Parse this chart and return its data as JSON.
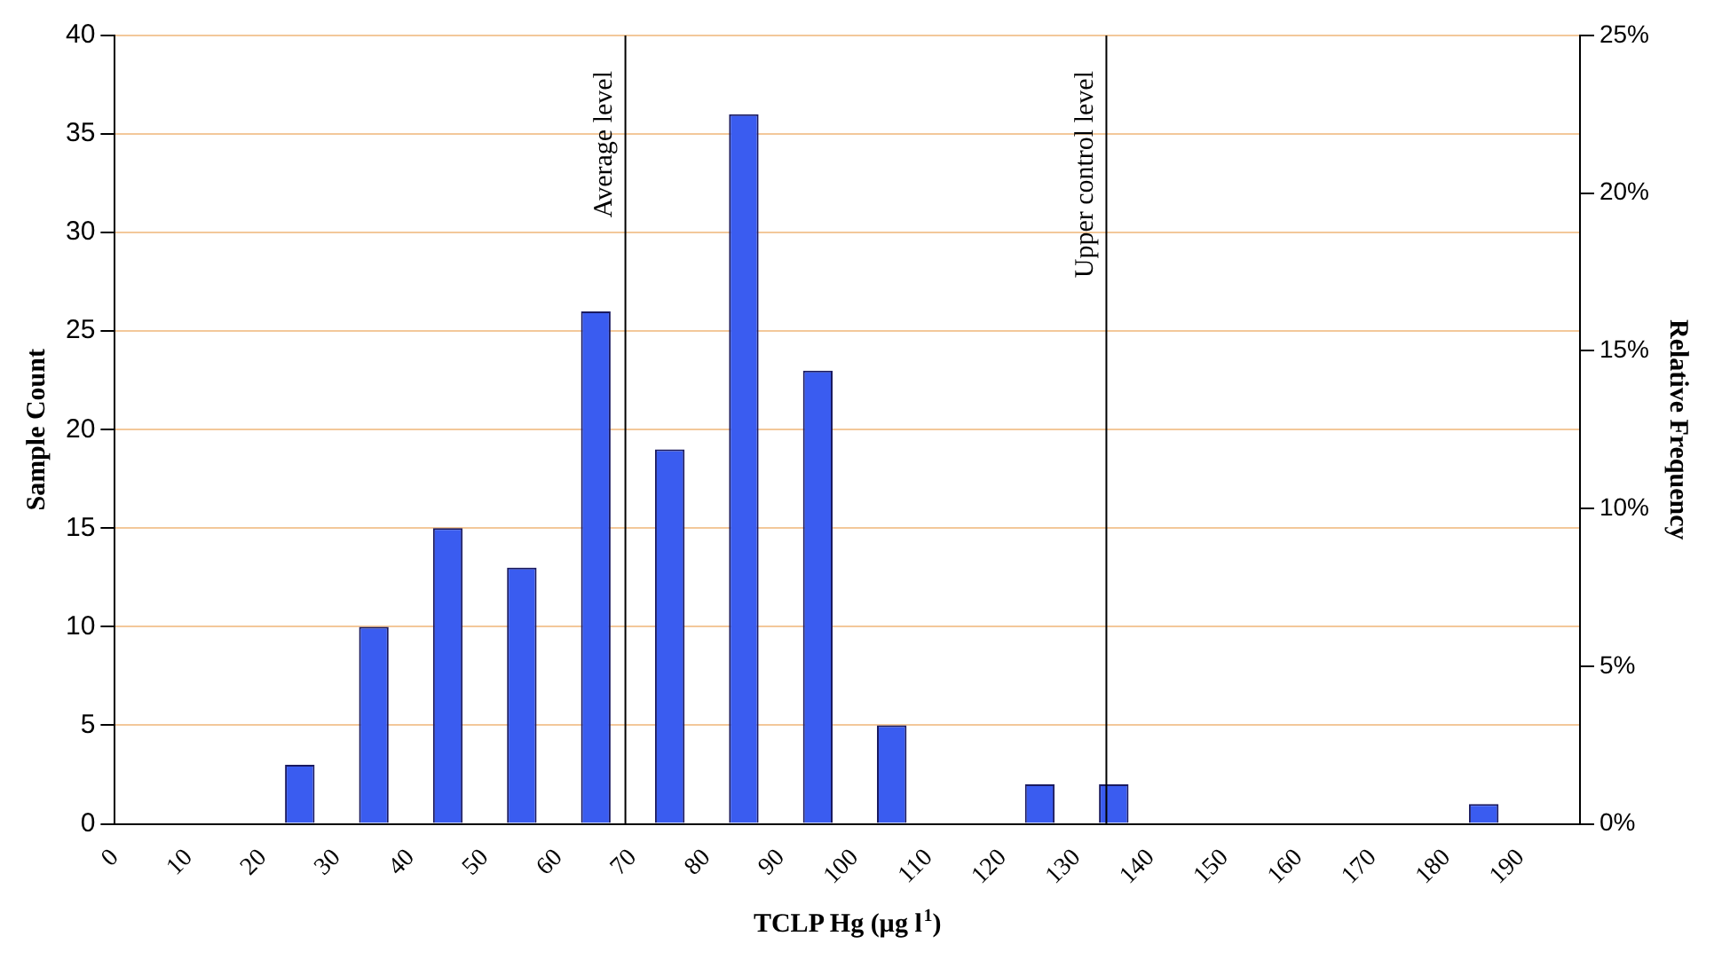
{
  "chart_data": {
    "type": "histogram",
    "xlabel": "TCLP Hg (µg l$^{1}$)",
    "ylabel": "Sample Count",
    "y2label": "Relative Frequency",
    "bins": [
      0,
      10,
      20,
      30,
      40,
      50,
      60,
      70,
      80,
      90,
      100,
      110,
      120,
      130,
      140,
      150,
      160,
      170,
      180,
      190,
      200
    ],
    "values": [
      0,
      0,
      3,
      10,
      15,
      13,
      26,
      19,
      36,
      23,
      5,
      0,
      2,
      2,
      0,
      0,
      0,
      0,
      1,
      0
    ],
    "color": "#3a5cf0",
    "xlim": [
      0,
      198
    ],
    "xticks": [
      0,
      10,
      20,
      30,
      40,
      50,
      60,
      70,
      80,
      90,
      100,
      110,
      120,
      130,
      140,
      150,
      160,
      170,
      180,
      190
    ],
    "ylim": [
      0,
      40
    ],
    "yticks": [
      0,
      5,
      10,
      15,
      20,
      25,
      30,
      35,
      40
    ],
    "y2lim": [
      0,
      25
    ],
    "y2ticks": [
      {
        "value": 0,
        "label": "0%"
      },
      {
        "value": 5,
        "label": "5%"
      },
      {
        "value": 10,
        "label": "10%"
      },
      {
        "value": 15,
        "label": "15%"
      },
      {
        "value": 20,
        "label": "20%"
      },
      {
        "value": 25,
        "label": "25%"
      }
    ],
    "grid": "y",
    "ref_lines": [
      {
        "axis": "x",
        "value": 69,
        "label": "Average level",
        "color": "#000000"
      },
      {
        "axis": "x",
        "value": 134,
        "label": "Upper control level",
        "color": "#000000"
      }
    ],
    "legend": false
  }
}
